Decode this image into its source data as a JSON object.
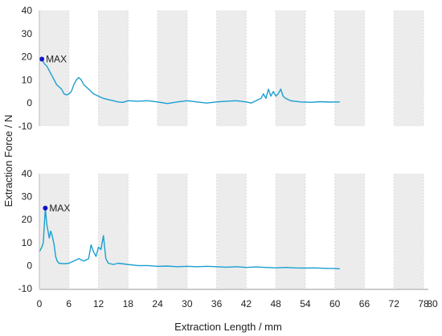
{
  "chart_data": {
    "type": "line",
    "xlabel": "Extraction Length / mm",
    "ylabel": "Extraction Force / N",
    "xlim": [
      0,
      80
    ],
    "xticks": [
      0,
      6,
      12,
      18,
      24,
      30,
      36,
      42,
      48,
      54,
      60,
      66,
      72,
      78
    ],
    "xtick_labels": [
      "0",
      "6",
      "12",
      "18",
      "24",
      "30",
      "36",
      "42",
      "48",
      "54",
      "60",
      "66",
      "72",
      "78"
    ],
    "extra_xtick_labels": [
      "80"
    ],
    "grid": "alternating vertical bands every 6 mm",
    "line_color": "#1a9fd0",
    "band_color": "#ececec",
    "marker_color": "#1010c8",
    "panels": [
      {
        "ylim": [
          -10,
          40
        ],
        "yticks": [
          -10,
          0,
          10,
          20,
          30,
          40
        ],
        "ytick_labels": [
          "-10",
          "0",
          "10",
          "20",
          "30",
          "40"
        ],
        "annotation": {
          "label": "MAX",
          "x": 0.5,
          "y": 19
        },
        "points": [
          [
            0.5,
            19
          ],
          [
            1.0,
            17
          ],
          [
            1.5,
            16
          ],
          [
            2.0,
            14
          ],
          [
            2.5,
            12
          ],
          [
            3.0,
            10
          ],
          [
            3.5,
            8
          ],
          [
            4.0,
            7
          ],
          [
            4.5,
            6
          ],
          [
            5.0,
            4
          ],
          [
            5.5,
            3.5
          ],
          [
            6.0,
            4
          ],
          [
            6.5,
            5
          ],
          [
            7.0,
            8
          ],
          [
            7.5,
            10
          ],
          [
            8.0,
            11
          ],
          [
            8.5,
            10
          ],
          [
            9.0,
            8
          ],
          [
            10.0,
            6
          ],
          [
            11.0,
            4
          ],
          [
            12.0,
            3
          ],
          [
            13.0,
            2
          ],
          [
            14.0,
            1.5
          ],
          [
            15.0,
            1
          ],
          [
            16.0,
            0.5
          ],
          [
            17.0,
            0.3
          ],
          [
            18.0,
            1
          ],
          [
            20.0,
            0.8
          ],
          [
            22.0,
            1
          ],
          [
            24.0,
            0.5
          ],
          [
            26.0,
            -0.2
          ],
          [
            28.0,
            0.5
          ],
          [
            30.0,
            1
          ],
          [
            32.0,
            0.5
          ],
          [
            34.0,
            0
          ],
          [
            36.0,
            0.5
          ],
          [
            38.0,
            0.8
          ],
          [
            40.0,
            1
          ],
          [
            42.0,
            0.5
          ],
          [
            43.0,
            0
          ],
          [
            44.0,
            1
          ],
          [
            45.0,
            2
          ],
          [
            45.5,
            4
          ],
          [
            46.0,
            2
          ],
          [
            46.5,
            6
          ],
          [
            47.0,
            3
          ],
          [
            47.5,
            5
          ],
          [
            48.0,
            3
          ],
          [
            48.5,
            4
          ],
          [
            49.0,
            6
          ],
          [
            49.5,
            3
          ],
          [
            50.0,
            2
          ],
          [
            51.0,
            1
          ],
          [
            53.0,
            0.5
          ],
          [
            55.0,
            0.3
          ],
          [
            57.0,
            0.6
          ],
          [
            59.0,
            0.4
          ],
          [
            61.0,
            0.5
          ]
        ]
      },
      {
        "ylim": [
          -10,
          40
        ],
        "yticks": [
          -10,
          0,
          10,
          20,
          30,
          40
        ],
        "ytick_labels": [
          "-10",
          "0",
          "10",
          "20",
          "30",
          "40"
        ],
        "annotation": {
          "label": "MAX",
          "x": 1.2,
          "y": 25
        },
        "points": [
          [
            0.0,
            6
          ],
          [
            0.5,
            8
          ],
          [
            0.8,
            10
          ],
          [
            1.2,
            25
          ],
          [
            1.5,
            18
          ],
          [
            2.0,
            12
          ],
          [
            2.3,
            15
          ],
          [
            2.6,
            13
          ],
          [
            3.0,
            9
          ],
          [
            3.3,
            4
          ],
          [
            3.6,
            2
          ],
          [
            4.0,
            1
          ],
          [
            5.0,
            0.8
          ],
          [
            6.0,
            1
          ],
          [
            7.0,
            2
          ],
          [
            8.0,
            3
          ],
          [
            9.0,
            2
          ],
          [
            10.0,
            3
          ],
          [
            10.5,
            9
          ],
          [
            11.0,
            6
          ],
          [
            11.5,
            4
          ],
          [
            12.0,
            8
          ],
          [
            12.5,
            7
          ],
          [
            13.0,
            13
          ],
          [
            13.5,
            3
          ],
          [
            14.0,
            1
          ],
          [
            15.0,
            0.5
          ],
          [
            16.0,
            1
          ],
          [
            18.0,
            0.5
          ],
          [
            20.0,
            0
          ],
          [
            22.0,
            0
          ],
          [
            24.0,
            -0.3
          ],
          [
            26.0,
            -0.2
          ],
          [
            28.0,
            -0.5
          ],
          [
            30.0,
            -0.3
          ],
          [
            32.0,
            -0.5
          ],
          [
            34.0,
            -0.3
          ],
          [
            36.0,
            -0.5
          ],
          [
            38.0,
            -0.7
          ],
          [
            40.0,
            -0.5
          ],
          [
            42.0,
            -0.8
          ],
          [
            44.0,
            -0.6
          ],
          [
            46.0,
            -0.8
          ],
          [
            48.0,
            -1
          ],
          [
            50.0,
            -0.8
          ],
          [
            52.0,
            -1
          ],
          [
            54.0,
            -1.1
          ],
          [
            56.0,
            -1
          ],
          [
            58.0,
            -1.2
          ],
          [
            60.0,
            -1.3
          ],
          [
            61.0,
            -1.4
          ]
        ]
      }
    ]
  }
}
